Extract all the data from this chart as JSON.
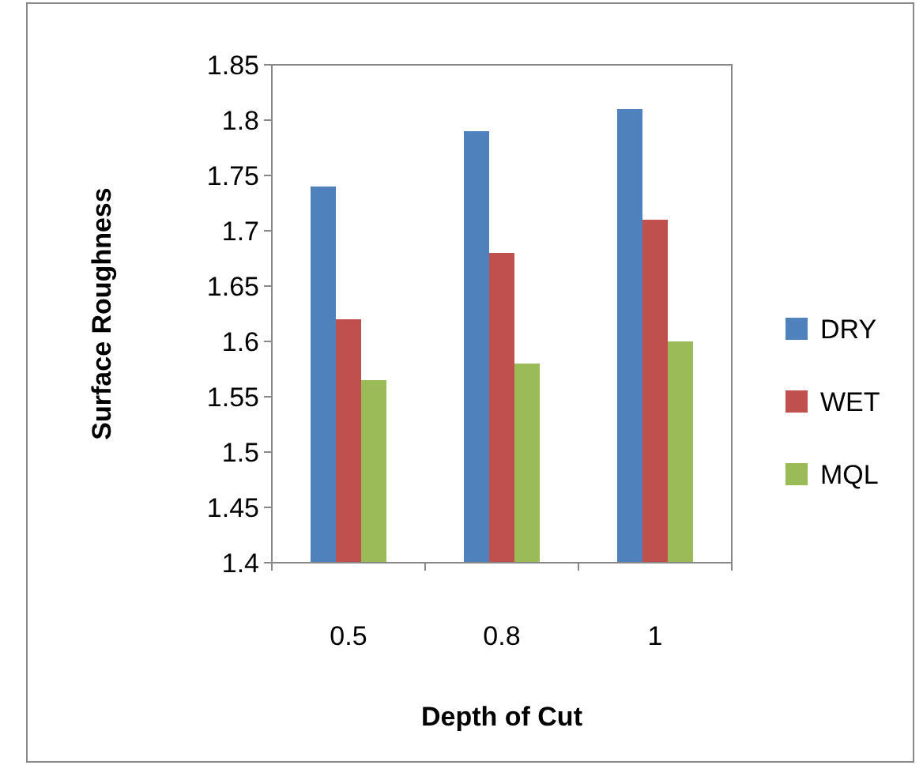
{
  "chart_data": {
    "type": "bar",
    "xlabel": "Depth of Cut",
    "ylabel": "Surface Roughness",
    "categories": [
      "0.5",
      "0.8",
      "1"
    ],
    "series": [
      {
        "name": "DRY",
        "color": "#4f81bd",
        "values": [
          1.74,
          1.79,
          1.81
        ]
      },
      {
        "name": "WET",
        "color": "#c0504d",
        "values": [
          1.62,
          1.68,
          1.71
        ]
      },
      {
        "name": "MQL",
        "color": "#9bbb59",
        "values": [
          1.565,
          1.58,
          1.6
        ]
      }
    ],
    "ylim": [
      1.4,
      1.85
    ],
    "yticks": [
      1.4,
      {
        "value": 1.45,
        "label": "1.45"
      },
      {
        "value": 1.5,
        "label": "1.5"
      },
      {
        "value": 1.55,
        "label": "1.55"
      },
      {
        "value": 1.6,
        "label": "1.6"
      },
      {
        "value": 1.65,
        "label": "1.65"
      },
      {
        "value": 1.7,
        "label": "1.7"
      },
      {
        "value": 1.75,
        "label": "1.75"
      },
      {
        "value": 1.8,
        "label": "1.8"
      },
      {
        "value": 1.85,
        "label": "1.85"
      }
    ],
    "legend": "right",
    "grid": false
  }
}
